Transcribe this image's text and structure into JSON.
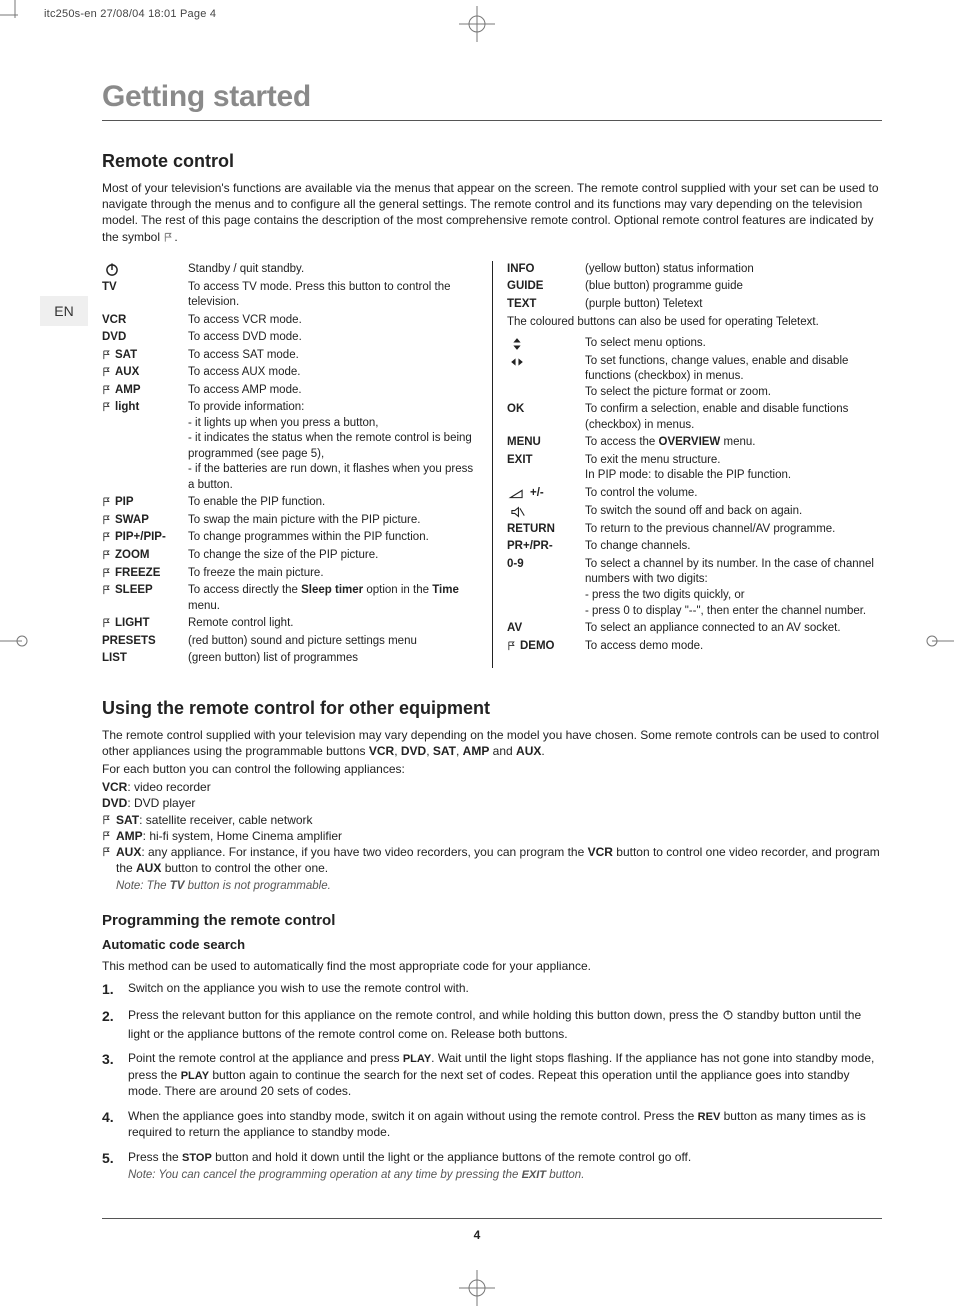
{
  "meta": {
    "slug": "itc250s-en  27/08/04  18:01  Page 4",
    "lang_tab": "EN",
    "page_number": "4"
  },
  "h1": "Getting started",
  "remote": {
    "heading": "Remote control",
    "intro": "Most of your television's functions are available via the menus that appear on the screen. The remote control supplied with your set can be used to navigate through the menus and to configure all the general settings. The remote control and its functions may vary depending on the television model. The rest of this page contains the description of the most comprehensive remote control. Optional remote control features are indicated by the symbol ",
    "intro_tail": "."
  },
  "left_col": [
    {
      "icon": "power",
      "key": "",
      "val": "Standby / quit standby."
    },
    {
      "key": "TV",
      "val": "To access TV mode. Press this button to control the television."
    },
    {
      "key": "VCR",
      "val": "To access VCR mode."
    },
    {
      "key": "DVD",
      "val": "To access DVD mode."
    },
    {
      "opt": true,
      "key": "SAT",
      "val": "To access SAT mode."
    },
    {
      "opt": true,
      "key": "AUX",
      "val": "To access AUX mode."
    },
    {
      "opt": true,
      "key": "AMP",
      "val": "To access AMP mode."
    },
    {
      "opt": true,
      "key": "light",
      "lower": true,
      "val": "To provide information:\n- it lights up when you press a button,\n- it indicates the status when the remote control is being programmed (see page 5),\n- if the batteries are run down, it flashes when you press a button."
    },
    {
      "opt": true,
      "key": "PIP",
      "val": "To enable the PIP function."
    },
    {
      "opt": true,
      "key": "SWAP",
      "val": "To swap the main picture with the PIP picture."
    },
    {
      "opt": true,
      "key": "PIP+/PIP-",
      "val": "To change programmes within the PIP function."
    },
    {
      "opt": true,
      "key": "ZOOM",
      "val": "To change the size of the PIP picture."
    },
    {
      "opt": true,
      "key": "FREEZE",
      "val": "To freeze the main picture."
    },
    {
      "opt": true,
      "key": "SLEEP",
      "val_html": "To access directly the <b>Sleep timer</b> option in the <b>Time</b> menu."
    },
    {
      "opt": true,
      "key": "LIGHT",
      "val": "Remote control light."
    },
    {
      "key": "PRESETS",
      "val": "(red button) sound and picture settings menu"
    },
    {
      "key": "LIST",
      "val": "(green button)  list of programmes"
    }
  ],
  "right_col": [
    {
      "key": "INFO",
      "val": "(yellow button) status information"
    },
    {
      "key": "GUIDE",
      "val": "(blue button) programme guide"
    },
    {
      "key": "TEXT",
      "val": "(purple button) Teletext"
    },
    {
      "span": true,
      "val": "The coloured buttons can also be used for operating Teletext."
    },
    {
      "icon": "updown",
      "key": "",
      "val": "To select menu options."
    },
    {
      "icon": "leftright",
      "key": "",
      "val": "To set functions, change values, enable and disable functions (checkbox) in menus.\nTo select the picture format or zoom."
    },
    {
      "key": "OK",
      "val": "To confirm a selection, enable and disable functions (checkbox) in menus."
    },
    {
      "key": "MENU",
      "val_html": "To access the <b>OVERVIEW</b> menu."
    },
    {
      "key": "EXIT",
      "val": "To exit the menu structure.\nIn PIP mode: to disable the PIP function."
    },
    {
      "icon": "vol",
      "key": "+/-",
      "val": "To control the volume."
    },
    {
      "icon": "mute",
      "key": "",
      "val": "To switch the sound off and back on again."
    },
    {
      "key": "RETURN",
      "val": "To return to the previous channel/AV programme."
    },
    {
      "key": "PR+/PR-",
      "val": "To change channels."
    },
    {
      "key": "0-9",
      "val": "To select a channel by its number. In the case of channel numbers with two digits:\n- press the two digits quickly, or\n- press 0 to display \"--\", then enter the channel number."
    },
    {
      "key": "AV",
      "val": "To select an appliance connected to an AV socket."
    },
    {
      "opt": true,
      "key": "DEMO",
      "val": "To access demo mode."
    }
  ],
  "using": {
    "heading": "Using the remote control for other equipment",
    "p1_html": "The remote control supplied with your television may vary depending on the model you have chosen. Some remote controls can be used to control other appliances using the programmable buttons <b>VCR</b>, <b>DVD</b>, <b>SAT</b>, <b>AMP</b> and <b>AUX</b>.",
    "p2": "For each button you can control the following appliances:",
    "lines": [
      {
        "html": "<b>VCR</b>: video recorder"
      },
      {
        "html": "<b>DVD</b>: DVD player"
      },
      {
        "opt": true,
        "html": "<b>SAT</b>: satellite receiver, cable network"
      },
      {
        "opt": true,
        "html": "<b>AMP</b>: hi-fi system, Home Cinema amplifier"
      },
      {
        "opt": true,
        "html": "<b>AUX</b>: any appliance. For instance, if you have two video recorders, you can program the <b>VCR</b> button to control one video recorder, and program the <b>AUX</b> button to control the other one."
      }
    ],
    "note_html": "Note: The <b>TV</b> button is not programmable."
  },
  "prog": {
    "heading": "Programming the remote control",
    "sub": "Automatic code search",
    "lead": "This method can be used to automatically find the most appropriate code for your appliance.",
    "steps": [
      {
        "html": "Switch on the appliance you wish to use the remote control with."
      },
      {
        "html": "Press the relevant button for this appliance on the remote control, and while holding this button down, press the <span class=\"inline-icon\"><svg width=\"12\" height=\"12\" viewBox=\"0 0 24 24\"><circle cx=\"12\" cy=\"12\" r=\"8\" fill=\"none\" stroke=\"#222\" stroke-width=\"2\"/><line x1=\"12\" y1=\"3\" x2=\"12\" y2=\"12\" stroke=\"#222\" stroke-width=\"2\"/></svg></span> standby button until the light or the appliance buttons of the remote control come on. Release both buttons."
      },
      {
        "html": "Point the remote control at the appliance and press <b>PLAY</b>. Wait until the light stops flashing. If the appliance has not gone into standby mode, press the <b>PLAY</b> button again to continue the search for the next set of codes. Repeat this operation until the appliance goes into standby mode. There are around 20 sets of codes."
      },
      {
        "html": "When the appliance goes into standby mode, switch it on again without using the remote control. Press the <b>REV</b> button as many times as is required to return the appliance to standby mode."
      },
      {
        "html": "Press the <b>STOP</b> button and hold it down until the light or the appliance buttons of the remote control go off.",
        "note_html": "Note: You can cancel the programming operation at any time by pressing the <b>EXIT</b> button."
      }
    ]
  },
  "icons": {
    "option_flag": "optional-feature-icon",
    "power": "power-icon",
    "updown": "up-down-icon",
    "leftright": "left-right-icon",
    "vol": "volume-icon",
    "mute": "mute-icon"
  },
  "colors": {
    "title_gray": "#8a8a8a",
    "rule": "#555555",
    "text": "#222222",
    "lang_tab_bg": "#efefef"
  }
}
